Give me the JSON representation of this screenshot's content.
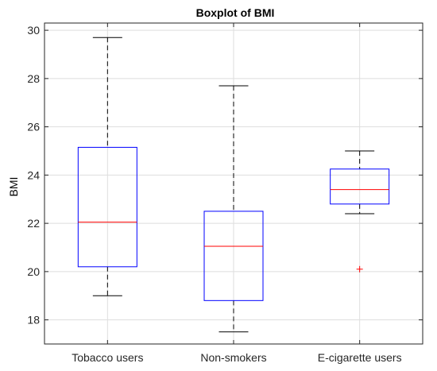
{
  "chart_data": {
    "type": "boxplot",
    "title": "Boxplot of BMI",
    "xlabel": "",
    "ylabel": "BMI",
    "ylim": [
      17,
      30.3
    ],
    "yticks": [
      18,
      20,
      22,
      24,
      26,
      28,
      30
    ],
    "grid": true,
    "categories": [
      "Tobacco users",
      "Non-smokers",
      "E-cigarette users"
    ],
    "boxes": [
      {
        "category": "Tobacco users",
        "whisker_low": 19.0,
        "q1": 20.2,
        "median": 22.05,
        "q3": 25.15,
        "whisker_high": 29.7,
        "outliers": []
      },
      {
        "category": "Non-smokers",
        "whisker_low": 17.5,
        "q1": 18.8,
        "median": 21.05,
        "q3": 22.5,
        "whisker_high": 27.7,
        "outliers": []
      },
      {
        "category": "E-cigarette users",
        "whisker_low": 22.4,
        "q1": 22.8,
        "median": 23.4,
        "q3": 24.25,
        "whisker_high": 25.0,
        "outliers": [
          20.1
        ]
      }
    ],
    "colors": {
      "box": "#0000ff",
      "median": "#ff0000",
      "whisker": "#000000",
      "outlier": "#ff0000",
      "grid": "#dedede",
      "axis": "#262626"
    }
  }
}
